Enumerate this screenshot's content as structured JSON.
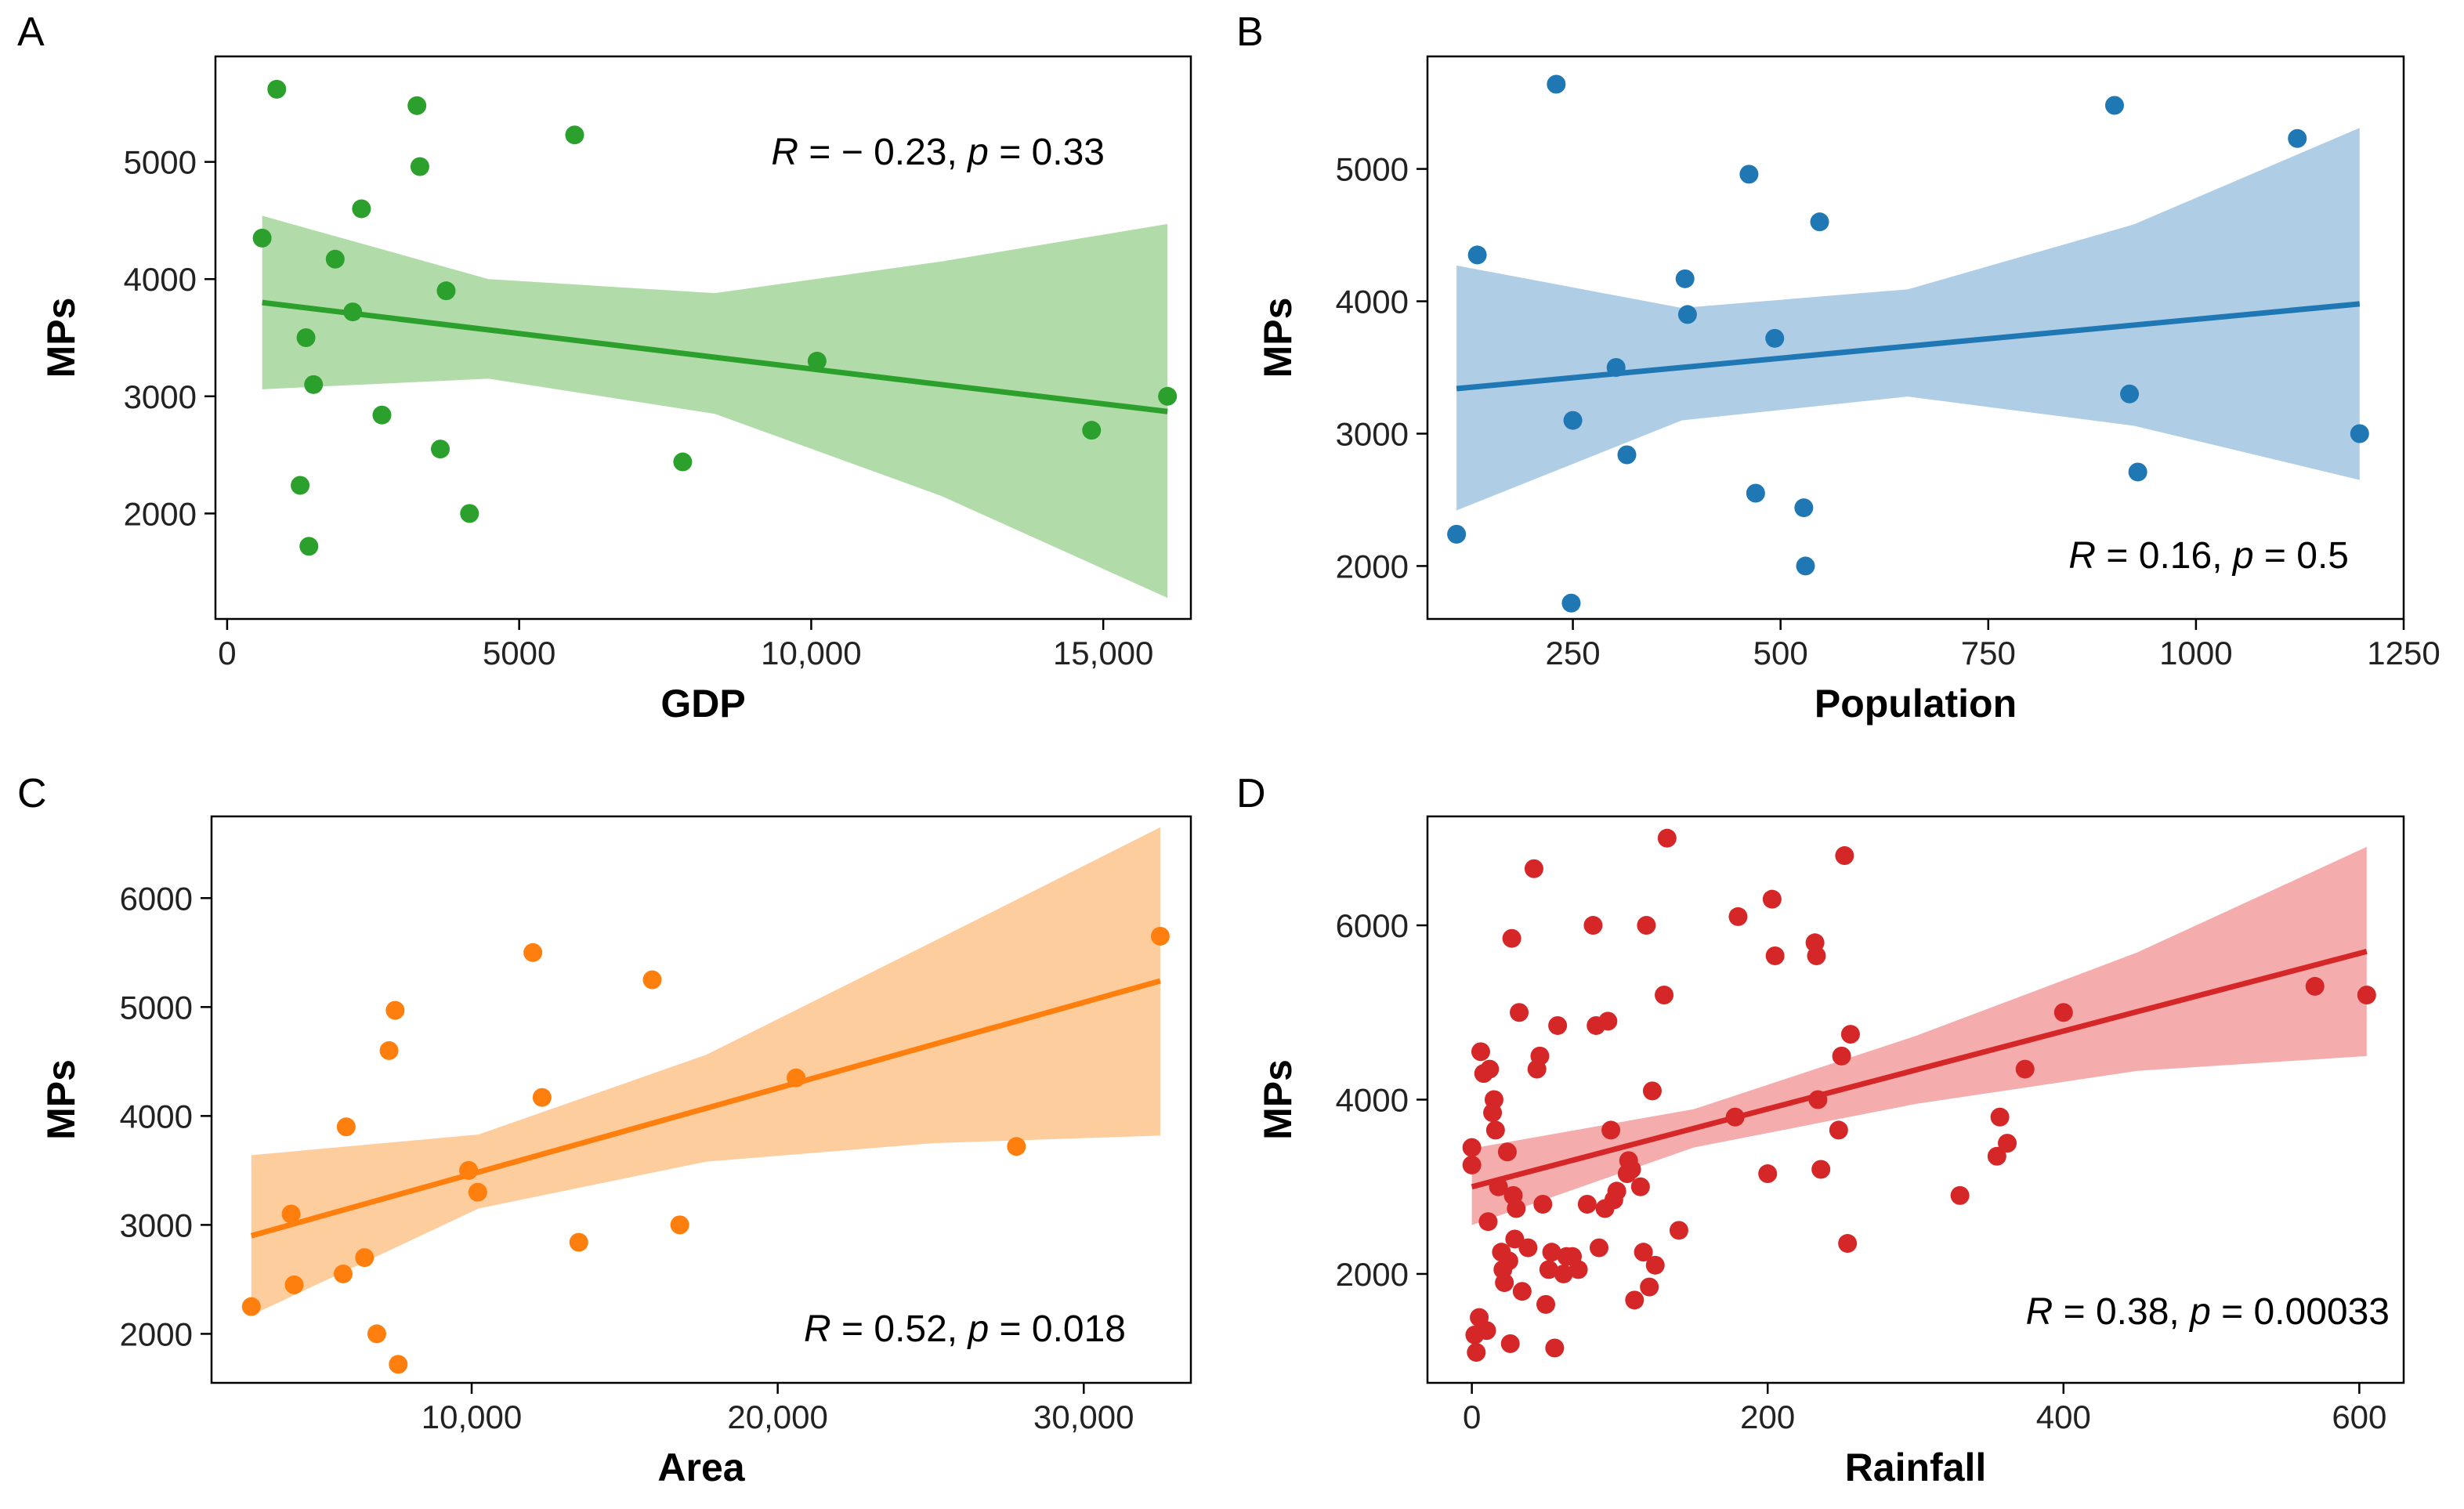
{
  "chart_data": [
    {
      "panel": "A",
      "type": "scatter",
      "xlabel": "GDP",
      "ylabel": "MPs",
      "xlim": [
        -200,
        16500
      ],
      "ylim": [
        1100,
        5900
      ],
      "xticks": [
        0,
        5000,
        10000,
        15000
      ],
      "xtick_labels": [
        "0",
        "5000",
        "10,000",
        "15,000"
      ],
      "yticks": [
        2000,
        3000,
        4000,
        5000
      ],
      "ytick_labels": [
        "2000",
        "3000",
        "4000",
        "5000"
      ],
      "color": "#2ca02c",
      "band_color": "#a8d8a0",
      "annotation": {
        "r_label": "R",
        "r_text": " = − 0.23, ",
        "p_label": "p",
        "p_text": " = 0.33",
        "position": "top-right"
      },
      "points": [
        {
          "x": 600,
          "y": 4350
        },
        {
          "x": 850,
          "y": 5620
        },
        {
          "x": 1250,
          "y": 2240
        },
        {
          "x": 1350,
          "y": 3500
        },
        {
          "x": 1400,
          "y": 1720
        },
        {
          "x": 1480,
          "y": 3100
        },
        {
          "x": 1850,
          "y": 4170
        },
        {
          "x": 2150,
          "y": 3720
        },
        {
          "x": 2300,
          "y": 4600
        },
        {
          "x": 2650,
          "y": 2840
        },
        {
          "x": 3250,
          "y": 5480
        },
        {
          "x": 3300,
          "y": 4960
        },
        {
          "x": 3650,
          "y": 2550
        },
        {
          "x": 3750,
          "y": 3900
        },
        {
          "x": 4150,
          "y": 2000
        },
        {
          "x": 5950,
          "y": 5230
        },
        {
          "x": 7800,
          "y": 2440
        },
        {
          "x": 10100,
          "y": 3300
        },
        {
          "x": 14800,
          "y": 2710
        },
        {
          "x": 16100,
          "y": 3000
        }
      ],
      "fit": {
        "x": [
          600,
          4475,
          8350,
          12225,
          16100
        ],
        "y": [
          3800,
          3567,
          3333,
          3100,
          2870
        ],
        "lower": [
          3060,
          3150,
          2850,
          2150,
          1280
        ],
        "upper": [
          4540,
          4000,
          3880,
          4150,
          4470
        ]
      }
    },
    {
      "panel": "B",
      "type": "scatter",
      "xlabel": "Population",
      "ylabel": "MPs",
      "xlim": [
        75,
        1250
      ],
      "ylim": [
        1600,
        5850
      ],
      "xticks": [
        250,
        500,
        750,
        1000,
        1250
      ],
      "xtick_labels": [
        "250",
        "500",
        "750",
        "1000",
        "1250"
      ],
      "yticks": [
        2000,
        3000,
        4000,
        5000
      ],
      "ytick_labels": [
        "2000",
        "3000",
        "4000",
        "5000"
      ],
      "color": "#1f77b4",
      "band_color": "#a6c9e2",
      "annotation": {
        "r_label": "R",
        "r_text": " = 0.16, ",
        "p_label": "p",
        "p_text": " = 0.5",
        "position": "bottom-right"
      },
      "points": [
        {
          "x": 110,
          "y": 2240
        },
        {
          "x": 135,
          "y": 4350
        },
        {
          "x": 230,
          "y": 5640
        },
        {
          "x": 248,
          "y": 1720
        },
        {
          "x": 250,
          "y": 3100
        },
        {
          "x": 302,
          "y": 3500
        },
        {
          "x": 315,
          "y": 2840
        },
        {
          "x": 385,
          "y": 4170
        },
        {
          "x": 388,
          "y": 3900
        },
        {
          "x": 462,
          "y": 4960
        },
        {
          "x": 470,
          "y": 2550
        },
        {
          "x": 493,
          "y": 3720
        },
        {
          "x": 528,
          "y": 2440
        },
        {
          "x": 530,
          "y": 2000
        },
        {
          "x": 547,
          "y": 4600
        },
        {
          "x": 902,
          "y": 5480
        },
        {
          "x": 920,
          "y": 3300
        },
        {
          "x": 930,
          "y": 2710
        },
        {
          "x": 1122,
          "y": 5230
        },
        {
          "x": 1197,
          "y": 3000
        }
      ],
      "fit": {
        "x": [
          110,
          381,
          653,
          925,
          1197
        ],
        "y": [
          3340,
          3500,
          3660,
          3820,
          3980
        ],
        "lower": [
          2420,
          3100,
          3280,
          3060,
          2650
        ],
        "upper": [
          4270,
          3950,
          4090,
          4580,
          5310
        ]
      }
    },
    {
      "panel": "C",
      "type": "scatter",
      "xlabel": "Area",
      "ylabel": "MPs",
      "xlim": [
        1500,
        33500
      ],
      "ylim": [
        1550,
        6750
      ],
      "xticks": [
        10000,
        20000,
        30000
      ],
      "xtick_labels": [
        "10,000",
        "20,000",
        "30,000"
      ],
      "yticks": [
        2000,
        3000,
        4000,
        5000,
        6000
      ],
      "ytick_labels": [
        "2000",
        "3000",
        "4000",
        "5000",
        "6000"
      ],
      "color": "#ff7f0e",
      "band_color": "#fdc894",
      "annotation": {
        "r_label": "R",
        "r_text": " = 0.52, ",
        "p_label": "p",
        "p_text": " = 0.018",
        "position": "bottom-right"
      },
      "points": [
        {
          "x": 2800,
          "y": 2250
        },
        {
          "x": 4100,
          "y": 3100
        },
        {
          "x": 4200,
          "y": 2450
        },
        {
          "x": 5800,
          "y": 2550
        },
        {
          "x": 5900,
          "y": 3900
        },
        {
          "x": 6500,
          "y": 2700
        },
        {
          "x": 6900,
          "y": 2000
        },
        {
          "x": 7300,
          "y": 4600
        },
        {
          "x": 7500,
          "y": 4970
        },
        {
          "x": 7600,
          "y": 1720
        },
        {
          "x": 9900,
          "y": 3500
        },
        {
          "x": 10200,
          "y": 3300
        },
        {
          "x": 12000,
          "y": 5500
        },
        {
          "x": 12300,
          "y": 4170
        },
        {
          "x": 13500,
          "y": 2840
        },
        {
          "x": 15900,
          "y": 5250
        },
        {
          "x": 16800,
          "y": 3000
        },
        {
          "x": 20600,
          "y": 4350
        },
        {
          "x": 27800,
          "y": 3720
        },
        {
          "x": 32500,
          "y": 5650
        }
      ],
      "fit": {
        "x": [
          2800,
          10225,
          17650,
          25075,
          32500
        ],
        "y": [
          2900,
          3485,
          4070,
          4655,
          5240
        ],
        "lower": [
          2170,
          3150,
          3580,
          3750,
          3820
        ],
        "upper": [
          3640,
          3830,
          4560,
          5600,
          6650
        ]
      }
    },
    {
      "panel": "D",
      "type": "scatter",
      "xlabel": "Rainfall",
      "ylabel": "MPs",
      "xlim": [
        -30,
        630
      ],
      "ylim": [
        750,
        7250
      ],
      "xticks": [
        0,
        200,
        400,
        600
      ],
      "xtick_labels": [
        "0",
        "200",
        "400",
        "600"
      ],
      "yticks": [
        2000,
        4000,
        6000
      ],
      "ytick_labels": [
        "2000",
        "4000",
        "6000"
      ],
      "color": "#d62728",
      "band_color": "#f4a3a4",
      "annotation": {
        "r_label": "R",
        "r_text": " = 0.38, ",
        "p_label": "p",
        "p_text": " = 0.00033",
        "position": "bottom-right"
      },
      "points": [
        {
          "x": 0,
          "y": 3450
        },
        {
          "x": 0,
          "y": 3250
        },
        {
          "x": 2,
          "y": 1300
        },
        {
          "x": 3,
          "y": 1100
        },
        {
          "x": 5,
          "y": 1500
        },
        {
          "x": 6,
          "y": 4550
        },
        {
          "x": 8,
          "y": 4300
        },
        {
          "x": 10,
          "y": 1350
        },
        {
          "x": 11,
          "y": 2600
        },
        {
          "x": 12,
          "y": 4350
        },
        {
          "x": 14,
          "y": 3850
        },
        {
          "x": 15,
          "y": 4000
        },
        {
          "x": 16,
          "y": 3650
        },
        {
          "x": 18,
          "y": 3000
        },
        {
          "x": 20,
          "y": 2250
        },
        {
          "x": 21,
          "y": 2050
        },
        {
          "x": 22,
          "y": 1900
        },
        {
          "x": 24,
          "y": 3400
        },
        {
          "x": 25,
          "y": 2150
        },
        {
          "x": 26,
          "y": 1200
        },
        {
          "x": 27,
          "y": 5850
        },
        {
          "x": 28,
          "y": 2900
        },
        {
          "x": 29,
          "y": 2400
        },
        {
          "x": 30,
          "y": 2750
        },
        {
          "x": 32,
          "y": 5000
        },
        {
          "x": 34,
          "y": 1800
        },
        {
          "x": 38,
          "y": 2300
        },
        {
          "x": 42,
          "y": 6650
        },
        {
          "x": 44,
          "y": 4350
        },
        {
          "x": 46,
          "y": 4500
        },
        {
          "x": 48,
          "y": 2800
        },
        {
          "x": 50,
          "y": 1650
        },
        {
          "x": 52,
          "y": 2050
        },
        {
          "x": 54,
          "y": 2250
        },
        {
          "x": 56,
          "y": 1150
        },
        {
          "x": 58,
          "y": 4850
        },
        {
          "x": 62,
          "y": 2000
        },
        {
          "x": 64,
          "y": 2200
        },
        {
          "x": 68,
          "y": 2200
        },
        {
          "x": 72,
          "y": 2050
        },
        {
          "x": 78,
          "y": 2800
        },
        {
          "x": 82,
          "y": 6000
        },
        {
          "x": 84,
          "y": 4850
        },
        {
          "x": 86,
          "y": 2300
        },
        {
          "x": 90,
          "y": 2750
        },
        {
          "x": 92,
          "y": 4900
        },
        {
          "x": 94,
          "y": 3650
        },
        {
          "x": 96,
          "y": 2850
        },
        {
          "x": 98,
          "y": 2950
        },
        {
          "x": 105,
          "y": 3150
        },
        {
          "x": 106,
          "y": 3300
        },
        {
          "x": 108,
          "y": 3200
        },
        {
          "x": 110,
          "y": 1700
        },
        {
          "x": 114,
          "y": 3000
        },
        {
          "x": 116,
          "y": 2250
        },
        {
          "x": 118,
          "y": 6000
        },
        {
          "x": 120,
          "y": 1850
        },
        {
          "x": 122,
          "y": 4100
        },
        {
          "x": 124,
          "y": 2100
        },
        {
          "x": 130,
          "y": 5200
        },
        {
          "x": 132,
          "y": 7000
        },
        {
          "x": 140,
          "y": 2500
        },
        {
          "x": 178,
          "y": 3800
        },
        {
          "x": 180,
          "y": 6100
        },
        {
          "x": 200,
          "y": 3150
        },
        {
          "x": 203,
          "y": 6300
        },
        {
          "x": 205,
          "y": 5650
        },
        {
          "x": 232,
          "y": 5800
        },
        {
          "x": 233,
          "y": 5650
        },
        {
          "x": 234,
          "y": 4000
        },
        {
          "x": 236,
          "y": 3200
        },
        {
          "x": 248,
          "y": 3650
        },
        {
          "x": 250,
          "y": 4500
        },
        {
          "x": 252,
          "y": 6800
        },
        {
          "x": 254,
          "y": 2350
        },
        {
          "x": 256,
          "y": 4750
        },
        {
          "x": 330,
          "y": 2900
        },
        {
          "x": 355,
          "y": 3350
        },
        {
          "x": 357,
          "y": 3800
        },
        {
          "x": 362,
          "y": 3500
        },
        {
          "x": 374,
          "y": 4350
        },
        {
          "x": 400,
          "y": 5000
        },
        {
          "x": 570,
          "y": 5300
        },
        {
          "x": 605,
          "y": 5200
        }
      ],
      "fit": {
        "x": [
          0,
          150,
          300,
          450,
          605
        ],
        "y": [
          3000,
          3670,
          4340,
          5010,
          5700
        ],
        "lower": [
          2560,
          3450,
          3950,
          4330,
          4500
        ],
        "upper": [
          3440,
          3890,
          4730,
          5690,
          6900
        ]
      }
    }
  ]
}
